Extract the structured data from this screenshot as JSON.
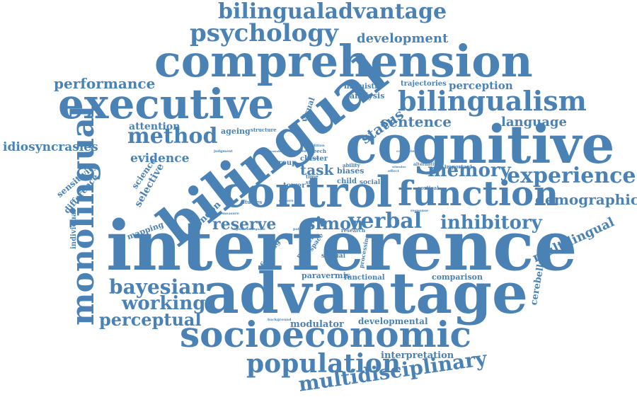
{
  "cloud": {
    "color": "#4a82b5",
    "words": [
      "interference",
      "advantage",
      "bilingual",
      "cognitive",
      "comprehension",
      "executive",
      "control",
      "monolingual",
      "function",
      "socioeconomic",
      "bilingualism",
      "psychology",
      "bilingualadvantage",
      "population",
      "experience",
      "memory",
      "multidisciplinary",
      "method",
      "verbal",
      "inhibitory",
      "bayesian",
      "working",
      "perceptual",
      "reserve",
      "simon",
      "demographic",
      "status",
      "sentence",
      "performance",
      "development",
      "language",
      "idiosyncrasies",
      "multilingual",
      "task",
      "evidence",
      "attention",
      "perception",
      "cerebellum",
      "modulator",
      "developmental",
      "interpretation",
      "paravermis",
      "functional",
      "comparison",
      "selective",
      "science",
      "london",
      "mapping",
      "individual",
      "difference",
      "sensitivity",
      "linguistic",
      "analysis",
      "trajectories",
      "visual",
      "ageing",
      "structure",
      "finding",
      "spatial",
      "processing",
      "predict",
      "space",
      "tower",
      "group",
      "cluster",
      "child",
      "social",
      "studies",
      "research",
      "biases",
      "ability",
      "cortical",
      "alternative",
      "important",
      "response",
      "background",
      "significant",
      "measure",
      "correlated",
      "judgment",
      "speech",
      "time",
      "size",
      "effect",
      "condition",
      "observed",
      "stimulus",
      "patterns",
      "regional",
      "variability",
      "present",
      "explore"
    ]
  }
}
